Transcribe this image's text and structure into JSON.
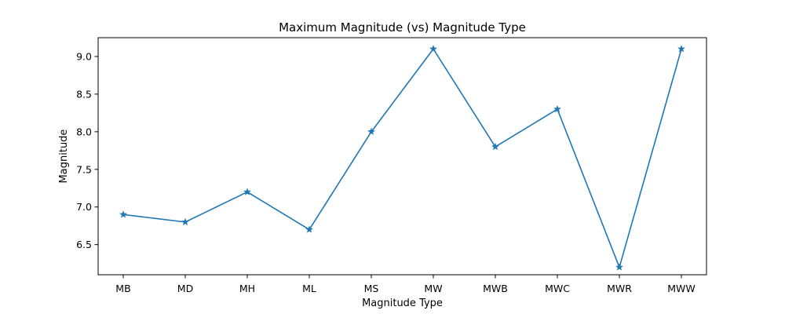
{
  "chart_data": {
    "type": "line",
    "title": "Maximum Magnitude (vs) Magnitude Type",
    "xlabel": "Magnitude Type",
    "ylabel": "Magnitude",
    "categories": [
      "MB",
      "MD",
      "MH",
      "ML",
      "MS",
      "MW",
      "MWB",
      "MWC",
      "MWR",
      "MWW"
    ],
    "series": [
      {
        "values": [
          6.9,
          6.8,
          7.2,
          6.7,
          8.0,
          9.1,
          7.8,
          8.3,
          6.2,
          9.1
        ],
        "color": "#1f77b4",
        "marker": "star"
      }
    ],
    "yticks": [
      "6.5",
      "7.0",
      "7.5",
      "8.0",
      "8.5",
      "9.0"
    ],
    "ylim": [
      6.1,
      9.25
    ],
    "grid": false,
    "legend": "none"
  }
}
